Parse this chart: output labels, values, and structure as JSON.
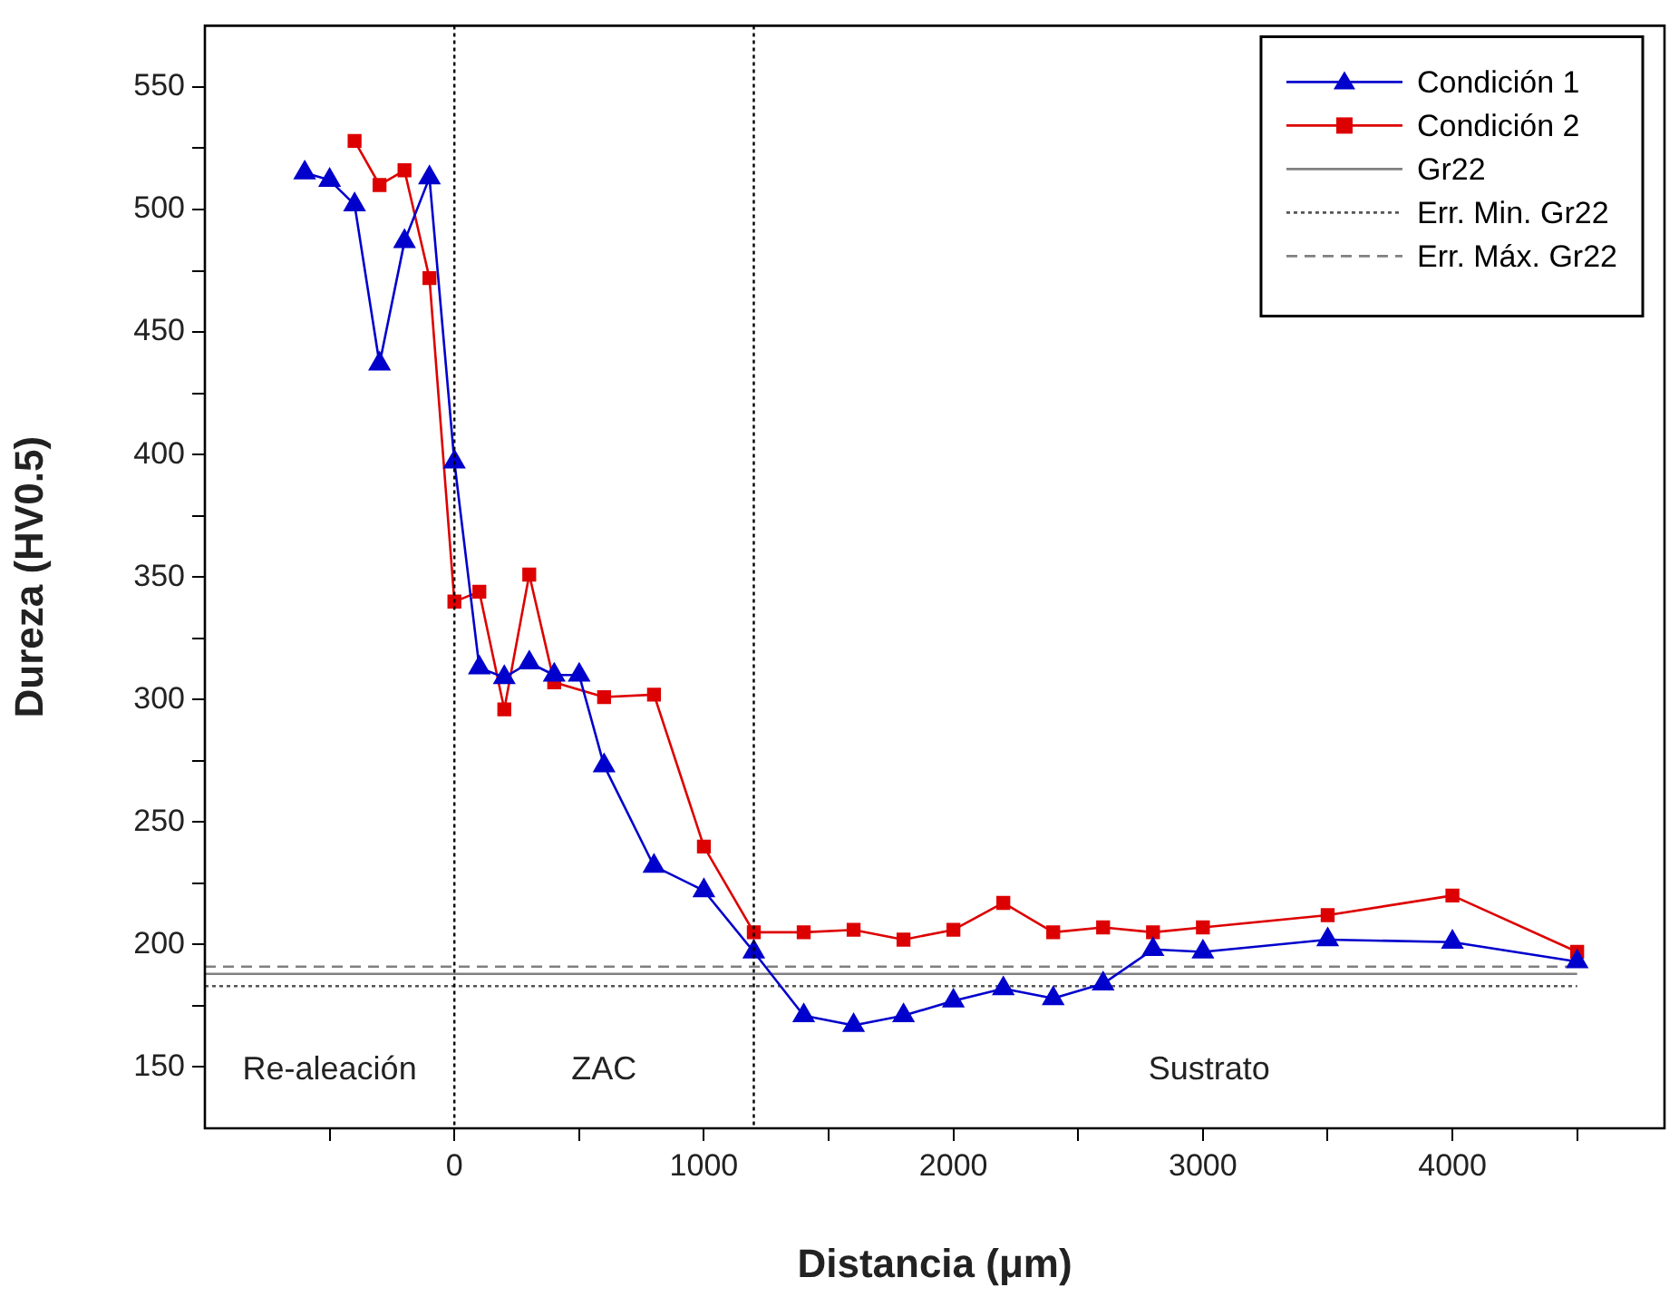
{
  "chart_data": {
    "type": "line",
    "xlabel": "Distancia (μm)",
    "ylabel": "Dureza (HV0.5)",
    "xlim": [
      -1000,
      4850
    ],
    "ylim": [
      125,
      575
    ],
    "xticks": [
      {
        "value": -500,
        "label": null
      },
      0,
      {
        "value": 500,
        "label": null
      },
      1000,
      {
        "value": 1500,
        "label": null
      },
      2000,
      {
        "value": 2500,
        "label": null
      },
      3000,
      {
        "value": 3500,
        "label": null
      },
      4000,
      {
        "value": 4500,
        "label": null
      }
    ],
    "yticks": [
      150,
      {
        "value": 175,
        "label": null
      },
      200,
      {
        "value": 225,
        "label": null
      },
      250,
      {
        "value": 275,
        "label": null
      },
      300,
      {
        "value": 325,
        "label": null
      },
      350,
      {
        "value": 375,
        "label": null
      },
      400,
      {
        "value": 425,
        "label": null
      },
      450,
      {
        "value": 475,
        "label": null
      },
      500,
      {
        "value": 525,
        "label": null
      },
      550
    ],
    "grid": false,
    "legend": "top right",
    "series": [
      {
        "name": "Condición 1",
        "color": "#0000cc",
        "marker": "triangle",
        "line_style": "solid",
        "x": [
          -600,
          -500,
          -400,
          -300,
          -200,
          -100,
          0,
          100,
          200,
          300,
          400,
          500,
          600,
          800,
          1000,
          1200,
          1400,
          1600,
          1800,
          2000,
          2200,
          2400,
          2600,
          2800,
          3000,
          3500,
          4000,
          4500
        ],
        "values": [
          515,
          512,
          502,
          437,
          487,
          513,
          397,
          313,
          309,
          315,
          310,
          310,
          273,
          232,
          222,
          197,
          171,
          167,
          171,
          177,
          182,
          178,
          184,
          198,
          197,
          202,
          201,
          193
        ]
      },
      {
        "name": "Condición 2",
        "color": "#dd0000",
        "marker": "square",
        "line_style": "solid",
        "x": [
          -400,
          -300,
          -200,
          -100,
          0,
          100,
          200,
          300,
          400,
          600,
          800,
          1000,
          1200,
          1400,
          1600,
          1800,
          2000,
          2200,
          2400,
          2600,
          2800,
          3000,
          3500,
          4000,
          4500
        ],
        "values": [
          528,
          510,
          516,
          472,
          340,
          344,
          296,
          351,
          307,
          301,
          302,
          240,
          205,
          205,
          206,
          202,
          206,
          217,
          205,
          207,
          205,
          207,
          212,
          220,
          197
        ]
      },
      {
        "name": "Gr22",
        "color": "#808080",
        "marker": "none",
        "line_style": "solid",
        "x": [
          -1000,
          4500
        ],
        "values": [
          188,
          188
        ]
      },
      {
        "name": "Err. Min. Gr22",
        "color": "#555555",
        "marker": "none",
        "line_style": "dotted",
        "x": [
          -1000,
          4500
        ],
        "values": [
          183,
          183
        ]
      },
      {
        "name": "Err. Máx. Gr22",
        "color": "#808080",
        "marker": "none",
        "line_style": "dashed",
        "x": [
          -1000,
          4500
        ],
        "values": [
          191,
          191
        ]
      }
    ],
    "ref_lines": [
      {
        "axis": "x",
        "value": 0,
        "color": "#000000",
        "line_style": "dotted"
      },
      {
        "axis": "x",
        "value": 1200,
        "color": "#000000",
        "line_style": "dotted"
      }
    ],
    "annotations": [
      "Re-aleación",
      "ZAC",
      "Sustrato"
    ]
  }
}
